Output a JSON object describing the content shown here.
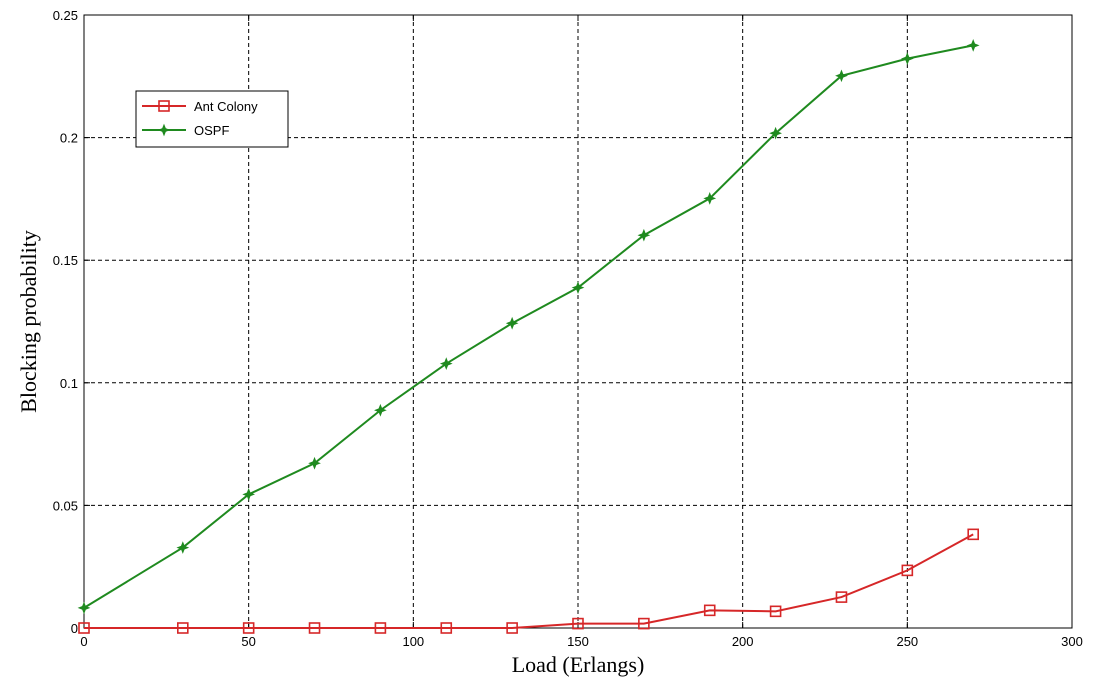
{
  "chart_data": {
    "type": "line",
    "xlabel": "Load (Erlangs)",
    "ylabel": "Blocking probability",
    "xlim": [
      0,
      300
    ],
    "ylim": [
      0,
      0.25
    ],
    "xticks": [
      0,
      50,
      100,
      150,
      200,
      250,
      300
    ],
    "xtick_labels": [
      "0",
      "50",
      "100",
      "150",
      "200",
      "250",
      "300"
    ],
    "yticks": [
      0,
      0.05,
      0.1,
      0.15,
      0.2,
      0.25
    ],
    "ytick_labels": [
      "0",
      "0.05",
      "0.1",
      "0.15",
      "0.2",
      "0.25"
    ],
    "grid": true,
    "legend_position": "top-left",
    "x": [
      0,
      30,
      50,
      70,
      90,
      110,
      130,
      150,
      170,
      190,
      210,
      230,
      250,
      270
    ],
    "series": [
      {
        "name": "Ant Colony",
        "color": "#d62728",
        "marker": "square",
        "values": [
          0,
          0,
          0,
          0,
          0,
          0,
          0,
          0.0018,
          0.0018,
          0.0072,
          0.0068,
          0.0126,
          0.0235,
          0.0382
        ]
      },
      {
        "name": "OSPF",
        "color": "#1f8a1f",
        "marker": "star",
        "values": [
          0.0082,
          0.0328,
          0.0545,
          0.0672,
          0.0888,
          0.1078,
          0.1243,
          0.1388,
          0.1602,
          0.1752,
          0.2018,
          0.2252,
          0.2322,
          0.2376
        ]
      }
    ]
  }
}
